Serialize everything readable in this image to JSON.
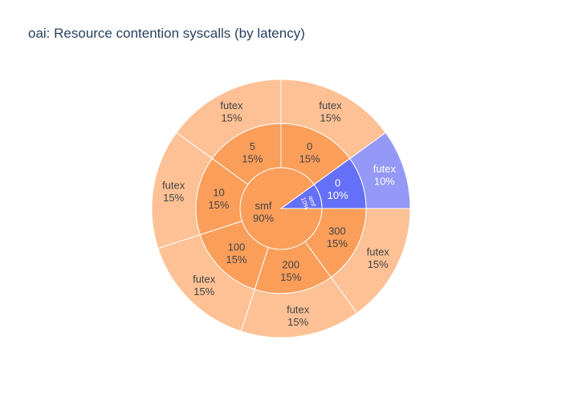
{
  "chart_data": {
    "type": "sunburst",
    "title": "oai: Resource contention syscalls (by latency)",
    "colors": {
      "smf_inner": "#fa9e5a",
      "smf_middle": "#fa9e5a",
      "smf_outer": "#fdc195",
      "amf_inner": "#6570f8",
      "amf_middle": "#6570f8",
      "amf_outer": "#9499f8",
      "dark_text": "#444444",
      "light_text": "#ffffff"
    },
    "nodes": [
      {
        "label": "smf",
        "percent": "90%",
        "value": 90,
        "children": [
          {
            "label": "0",
            "percent": "15%",
            "value": 15,
            "children": [
              {
                "label": "futex",
                "percent": "15%",
                "value": 15
              }
            ]
          },
          {
            "label": "5",
            "percent": "15%",
            "value": 15,
            "children": [
              {
                "label": "futex",
                "percent": "15%",
                "value": 15
              }
            ]
          },
          {
            "label": "10",
            "percent": "15%",
            "value": 15,
            "children": [
              {
                "label": "futex",
                "percent": "15%",
                "value": 15
              }
            ]
          },
          {
            "label": "100",
            "percent": "15%",
            "value": 15,
            "children": [
              {
                "label": "futex",
                "percent": "15%",
                "value": 15
              }
            ]
          },
          {
            "label": "200",
            "percent": "15%",
            "value": 15,
            "children": [
              {
                "label": "futex",
                "percent": "15%",
                "value": 15
              }
            ]
          },
          {
            "label": "300",
            "percent": "15%",
            "value": 15,
            "children": [
              {
                "label": "futex",
                "percent": "15%",
                "value": 15
              }
            ]
          }
        ]
      },
      {
        "label": "amf",
        "percent": "10%",
        "value": 10,
        "children": [
          {
            "label": "0",
            "percent": "10%",
            "value": 10,
            "children": [
              {
                "label": "futex",
                "percent": "10%",
                "value": 10
              }
            ]
          }
        ]
      }
    ]
  }
}
